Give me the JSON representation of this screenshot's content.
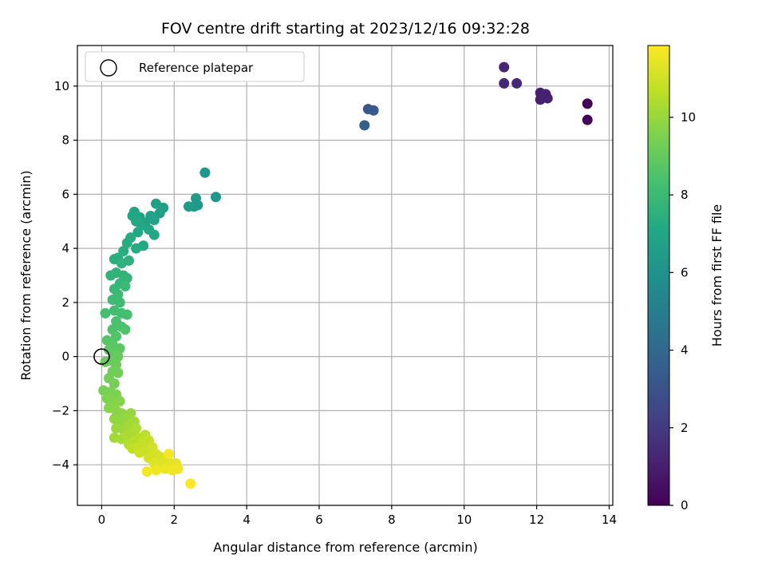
{
  "chart_data": {
    "type": "scatter",
    "title": "FOV centre drift starting at 2023/12/16 09:32:28",
    "xlabel": "Angular distance from reference (arcmin)",
    "ylabel": "Rotation from reference (arcmin)",
    "xlim": [
      -0.67,
      14.1
    ],
    "ylim": [
      -5.5,
      11.5
    ],
    "xticks": [
      0,
      2,
      4,
      6,
      8,
      10,
      12,
      14
    ],
    "yticks": [
      -4,
      -2,
      0,
      2,
      4,
      6,
      8,
      10
    ],
    "grid": true,
    "legend": {
      "position": "top-left",
      "entries": [
        "Reference platepar"
      ]
    },
    "reference_point": {
      "x": 0,
      "y": 0
    },
    "colorbar": {
      "label": "Hours from first FF file",
      "colormap": "viridis",
      "min": 0,
      "max": 11.85,
      "ticks": [
        0,
        2,
        4,
        6,
        8,
        10
      ]
    },
    "points": [
      {
        "x": 13.4,
        "y": 9.35,
        "h": 0.05
      },
      {
        "x": 13.4,
        "y": 8.75,
        "h": 0.1
      },
      {
        "x": 12.1,
        "y": 9.75,
        "h": 1.0
      },
      {
        "x": 12.3,
        "y": 9.55,
        "h": 1.0
      },
      {
        "x": 12.1,
        "y": 9.5,
        "h": 1.05
      },
      {
        "x": 12.25,
        "y": 9.7,
        "h": 1.05
      },
      {
        "x": 11.1,
        "y": 10.7,
        "h": 1.2
      },
      {
        "x": 11.1,
        "y": 10.1,
        "h": 1.25
      },
      {
        "x": 11.45,
        "y": 10.1,
        "h": 1.3
      },
      {
        "x": 7.35,
        "y": 9.15,
        "h": 3.2
      },
      {
        "x": 7.5,
        "y": 9.1,
        "h": 3.3
      },
      {
        "x": 7.25,
        "y": 8.55,
        "h": 3.5
      },
      {
        "x": 2.85,
        "y": 6.8,
        "h": 6.2
      },
      {
        "x": 3.15,
        "y": 5.9,
        "h": 6.3
      },
      {
        "x": 2.55,
        "y": 5.55,
        "h": 6.4
      },
      {
        "x": 2.6,
        "y": 5.85,
        "h": 6.4
      },
      {
        "x": 2.65,
        "y": 5.6,
        "h": 6.4
      },
      {
        "x": 2.4,
        "y": 5.55,
        "h": 6.45
      },
      {
        "x": 1.5,
        "y": 5.65,
        "h": 6.6
      },
      {
        "x": 1.7,
        "y": 5.5,
        "h": 6.65
      },
      {
        "x": 1.6,
        "y": 5.3,
        "h": 6.7
      },
      {
        "x": 1.35,
        "y": 5.2,
        "h": 6.75
      },
      {
        "x": 1.45,
        "y": 5.05,
        "h": 6.8
      },
      {
        "x": 1.2,
        "y": 4.95,
        "h": 6.85
      },
      {
        "x": 1.05,
        "y": 5.15,
        "h": 6.9
      },
      {
        "x": 0.9,
        "y": 5.35,
        "h": 6.9
      },
      {
        "x": 0.85,
        "y": 5.2,
        "h": 6.95
      },
      {
        "x": 0.95,
        "y": 5.0,
        "h": 7.0
      },
      {
        "x": 1.1,
        "y": 4.85,
        "h": 7.0
      },
      {
        "x": 1.3,
        "y": 4.7,
        "h": 7.05
      },
      {
        "x": 1.45,
        "y": 4.5,
        "h": 7.1
      },
      {
        "x": 1.0,
        "y": 4.6,
        "h": 7.1
      },
      {
        "x": 1.15,
        "y": 4.1,
        "h": 7.15
      },
      {
        "x": 0.8,
        "y": 4.4,
        "h": 7.2
      },
      {
        "x": 0.95,
        "y": 4.0,
        "h": 7.25
      },
      {
        "x": 0.7,
        "y": 4.2,
        "h": 7.3
      },
      {
        "x": 0.6,
        "y": 3.9,
        "h": 7.35
      },
      {
        "x": 0.45,
        "y": 3.65,
        "h": 7.4
      },
      {
        "x": 0.35,
        "y": 3.6,
        "h": 7.45
      },
      {
        "x": 0.75,
        "y": 3.55,
        "h": 7.5
      },
      {
        "x": 0.55,
        "y": 3.45,
        "h": 7.55
      },
      {
        "x": 0.25,
        "y": 3.0,
        "h": 7.6
      },
      {
        "x": 0.4,
        "y": 3.1,
        "h": 7.65
      },
      {
        "x": 0.6,
        "y": 3.0,
        "h": 7.7
      },
      {
        "x": 0.7,
        "y": 2.9,
        "h": 7.75
      },
      {
        "x": 0.5,
        "y": 2.7,
        "h": 7.8
      },
      {
        "x": 0.35,
        "y": 2.5,
        "h": 7.9
      },
      {
        "x": 0.65,
        "y": 2.6,
        "h": 7.95
      },
      {
        "x": 0.45,
        "y": 2.3,
        "h": 8.0
      },
      {
        "x": 0.3,
        "y": 2.1,
        "h": 8.05
      },
      {
        "x": 0.5,
        "y": 2.0,
        "h": 8.1
      },
      {
        "x": 0.35,
        "y": 1.7,
        "h": 8.2
      },
      {
        "x": 0.55,
        "y": 1.6,
        "h": 8.25
      },
      {
        "x": 0.7,
        "y": 1.55,
        "h": 8.3
      },
      {
        "x": 0.1,
        "y": 1.6,
        "h": 8.3
      },
      {
        "x": 0.4,
        "y": 1.3,
        "h": 8.4
      },
      {
        "x": 0.55,
        "y": 1.1,
        "h": 8.45
      },
      {
        "x": 0.3,
        "y": 1.0,
        "h": 8.5
      },
      {
        "x": 0.65,
        "y": 1.0,
        "h": 8.55
      },
      {
        "x": 0.4,
        "y": 0.75,
        "h": 8.6
      },
      {
        "x": 0.15,
        "y": 0.6,
        "h": 8.7
      },
      {
        "x": 0.3,
        "y": 0.45,
        "h": 8.75
      },
      {
        "x": 0.5,
        "y": 0.3,
        "h": 8.8
      },
      {
        "x": 0.2,
        "y": 0.25,
        "h": 8.85
      },
      {
        "x": 0.35,
        "y": 0.1,
        "h": 8.9
      },
      {
        "x": 0.45,
        "y": 0.0,
        "h": 9.0
      },
      {
        "x": 0.25,
        "y": -0.15,
        "h": 9.05
      },
      {
        "x": 0.1,
        "y": -0.2,
        "h": 9.1
      },
      {
        "x": 0.4,
        "y": -0.3,
        "h": 9.15
      },
      {
        "x": 0.3,
        "y": -0.55,
        "h": 9.2
      },
      {
        "x": 0.45,
        "y": -0.6,
        "h": 9.25
      },
      {
        "x": 0.2,
        "y": -0.8,
        "h": 9.3
      },
      {
        "x": 0.35,
        "y": -1.0,
        "h": 9.35
      },
      {
        "x": 0.05,
        "y": -1.25,
        "h": 9.4
      },
      {
        "x": 0.25,
        "y": -1.3,
        "h": 9.45
      },
      {
        "x": 0.4,
        "y": -1.4,
        "h": 9.5
      },
      {
        "x": 0.15,
        "y": -1.55,
        "h": 9.55
      },
      {
        "x": 0.3,
        "y": -1.7,
        "h": 9.6
      },
      {
        "x": 0.5,
        "y": -1.65,
        "h": 9.65
      },
      {
        "x": 0.2,
        "y": -1.9,
        "h": 9.7
      },
      {
        "x": 0.4,
        "y": -2.0,
        "h": 9.75
      },
      {
        "x": 0.55,
        "y": -2.1,
        "h": 9.8
      },
      {
        "x": 0.35,
        "y": -2.3,
        "h": 9.85
      },
      {
        "x": 0.5,
        "y": -2.4,
        "h": 9.9
      },
      {
        "x": 0.65,
        "y": -2.3,
        "h": 9.95
      },
      {
        "x": 0.8,
        "y": -2.1,
        "h": 10.0
      },
      {
        "x": 0.4,
        "y": -2.65,
        "h": 10.05
      },
      {
        "x": 0.6,
        "y": -2.7,
        "h": 10.1
      },
      {
        "x": 0.75,
        "y": -2.55,
        "h": 10.15
      },
      {
        "x": 0.9,
        "y": -2.4,
        "h": 10.2
      },
      {
        "x": 0.35,
        "y": -3.0,
        "h": 10.2
      },
      {
        "x": 0.55,
        "y": -3.05,
        "h": 10.25
      },
      {
        "x": 0.7,
        "y": -2.9,
        "h": 10.3
      },
      {
        "x": 0.85,
        "y": -2.8,
        "h": 10.35
      },
      {
        "x": 0.95,
        "y": -2.65,
        "h": 10.4
      },
      {
        "x": 0.75,
        "y": -3.25,
        "h": 10.5
      },
      {
        "x": 0.9,
        "y": -3.1,
        "h": 10.55
      },
      {
        "x": 1.05,
        "y": -3.0,
        "h": 10.6
      },
      {
        "x": 1.2,
        "y": -2.9,
        "h": 10.65
      },
      {
        "x": 0.85,
        "y": -3.4,
        "h": 10.7
      },
      {
        "x": 1.0,
        "y": -3.35,
        "h": 10.75
      },
      {
        "x": 1.15,
        "y": -3.2,
        "h": 10.8
      },
      {
        "x": 1.3,
        "y": -3.1,
        "h": 10.85
      },
      {
        "x": 1.05,
        "y": -3.55,
        "h": 10.9
      },
      {
        "x": 1.25,
        "y": -3.5,
        "h": 10.95
      },
      {
        "x": 1.4,
        "y": -3.35,
        "h": 11.0
      },
      {
        "x": 1.5,
        "y": -3.6,
        "h": 11.05
      },
      {
        "x": 1.3,
        "y": -3.75,
        "h": 11.1
      },
      {
        "x": 1.6,
        "y": -3.7,
        "h": 11.15
      },
      {
        "x": 1.75,
        "y": -3.8,
        "h": 11.2
      },
      {
        "x": 1.45,
        "y": -3.95,
        "h": 11.25
      },
      {
        "x": 1.65,
        "y": -4.0,
        "h": 11.3
      },
      {
        "x": 1.85,
        "y": -3.9,
        "h": 11.35
      },
      {
        "x": 1.95,
        "y": -4.05,
        "h": 11.4
      },
      {
        "x": 2.05,
        "y": -3.95,
        "h": 11.45
      },
      {
        "x": 1.75,
        "y": -4.15,
        "h": 11.5
      },
      {
        "x": 1.95,
        "y": -4.2,
        "h": 11.55
      },
      {
        "x": 2.1,
        "y": -4.15,
        "h": 11.6
      },
      {
        "x": 1.5,
        "y": -4.2,
        "h": 11.6
      },
      {
        "x": 1.25,
        "y": -4.25,
        "h": 11.65
      },
      {
        "x": 1.85,
        "y": -3.6,
        "h": 11.7
      },
      {
        "x": 2.45,
        "y": -4.7,
        "h": 11.85
      }
    ]
  }
}
